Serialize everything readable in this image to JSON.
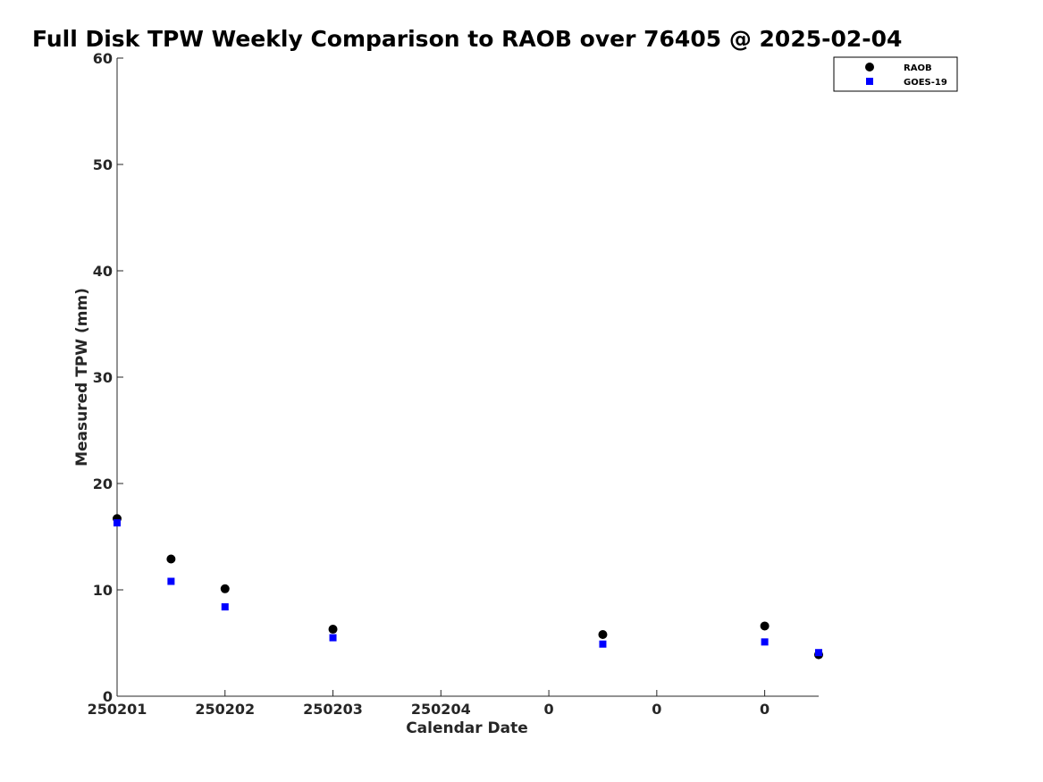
{
  "chart_data": {
    "type": "scatter",
    "title": "Full Disk TPW Weekly Comparison to RAOB over 76405 @ 2025-02-04",
    "xlabel": "Calendar Date",
    "ylabel": "Measured TPW (mm)",
    "ylim": [
      0,
      60
    ],
    "yticks": [
      0,
      10,
      20,
      30,
      40,
      50,
      60
    ],
    "xlim": [
      0,
      6.5
    ],
    "xticks": [
      0,
      1,
      2,
      3,
      4,
      5,
      6
    ],
    "xtick_labels": [
      "250201",
      "250202",
      "250203",
      "250204",
      "0",
      "0",
      "0"
    ],
    "grid": false,
    "legend_position": "top-right",
    "series": [
      {
        "name": "RAOB",
        "marker": "circle",
        "color": "#000000",
        "x": [
          0,
          0.5,
          1,
          2,
          4.5,
          6,
          6.5
        ],
        "y": [
          16.7,
          12.9,
          10.1,
          6.3,
          5.8,
          6.6,
          3.9
        ]
      },
      {
        "name": "GOES-19",
        "marker": "square",
        "color": "#0000ff",
        "x": [
          0,
          0.5,
          1,
          2,
          4.5,
          6,
          6.5
        ],
        "y": [
          16.3,
          10.8,
          8.4,
          5.5,
          4.9,
          5.1,
          4.1
        ]
      }
    ]
  }
}
